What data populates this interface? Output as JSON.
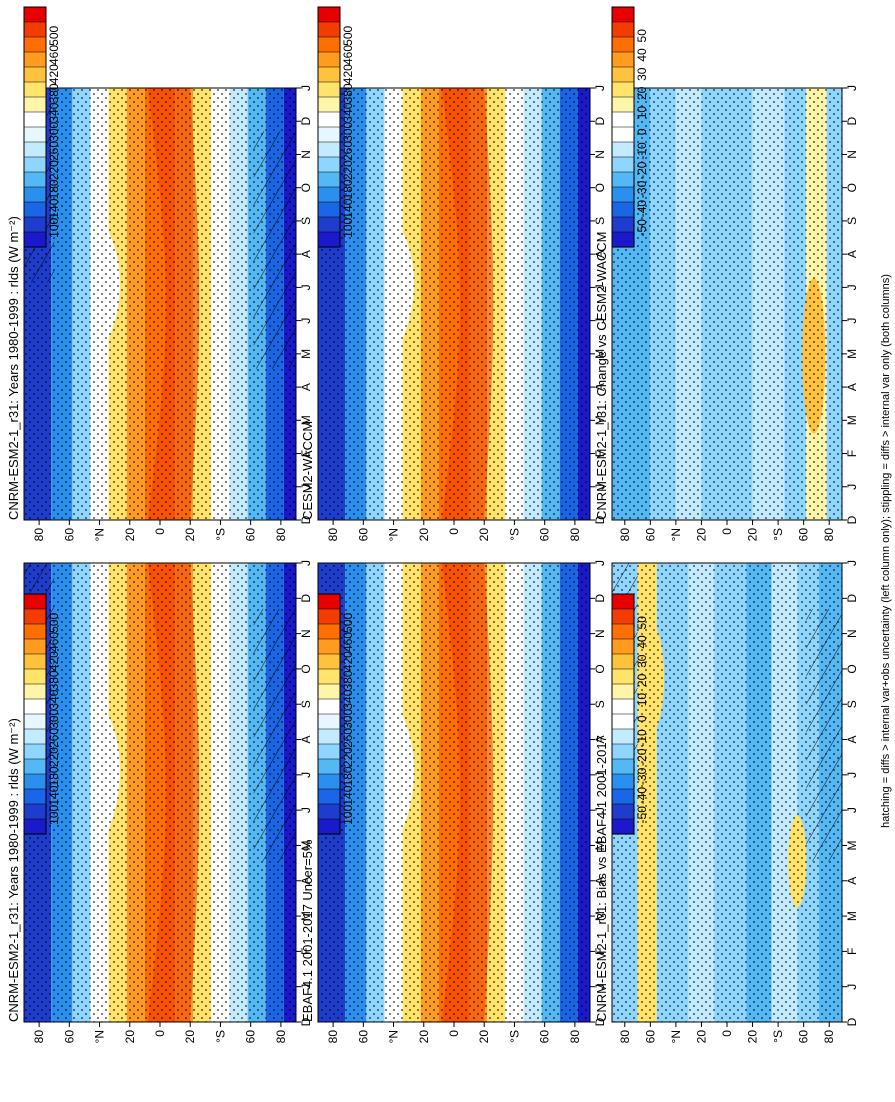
{
  "figure": {
    "footnote": "hatching = diffs > internal var+obs uncertainty (left column only); stippling = diffs > internal var only (both columns)"
  },
  "chart_data": [
    {
      "id": "p1",
      "type": "heatmap",
      "stipple": true,
      "title": "CNRM-ESM2-1_r31: Years 1980-1999 : rlds (W m⁻²)",
      "x": [
        "D",
        "J",
        "F",
        "M",
        "A",
        "M",
        "J",
        "J",
        "A",
        "S",
        "O",
        "N",
        "D",
        "J"
      ],
      "y": [
        "80",
        "60",
        "°N",
        "20",
        "0",
        "20",
        "°S",
        "60",
        "80"
      ],
      "ylim": [
        -90,
        90
      ],
      "colorbar": {
        "ticks": [
          "500",
          "460",
          "420",
          "380",
          "340",
          "300",
          "260",
          "220",
          "180",
          "140",
          "100"
        ],
        "colors": [
          "#e60000",
          "#f23c00",
          "#ff6e00",
          "#ff9b1f",
          "#ffc23d",
          "#ffe36b",
          "#fff5a8",
          "#ffffff",
          "#e6f7ff",
          "#c2ebff",
          "#8fd6ff",
          "#54b8f5",
          "#2b8ff0",
          "#1a66e6",
          "#1f3dcc",
          "#1a1acc"
        ]
      }
    },
    {
      "id": "p2",
      "type": "heatmap",
      "stipple": true,
      "title": "CNRM-ESM2-1_r31: Years 1980-1999 : rlds (W m⁻²)",
      "x": [
        "D",
        "J",
        "F",
        "M",
        "A",
        "M",
        "J",
        "J",
        "A",
        "S",
        "O",
        "N",
        "D",
        "J"
      ],
      "y": [
        "80",
        "60",
        "°N",
        "20",
        "0",
        "20",
        "°S",
        "60",
        "80"
      ],
      "ylim": [
        -90,
        90
      ],
      "colorbar": {
        "ticks": [
          "500",
          "460",
          "420",
          "380",
          "340",
          "300",
          "260",
          "220",
          "180",
          "140",
          "100"
        ],
        "colors": [
          "#e60000",
          "#f23c00",
          "#ff6e00",
          "#ff9b1f",
          "#ffc23d",
          "#ffe36b",
          "#fff5a8",
          "#ffffff",
          "#e6f7ff",
          "#c2ebff",
          "#8fd6ff",
          "#54b8f5",
          "#2b8ff0",
          "#1a66e6",
          "#1f3dcc",
          "#1a1acc"
        ]
      }
    },
    {
      "id": "p3",
      "type": "heatmap",
      "stipple": true,
      "title": "CESM2-WACCM",
      "x": [
        "D",
        "J",
        "F",
        "M",
        "A",
        "M",
        "J",
        "J",
        "A",
        "S",
        "O",
        "N",
        "D",
        "J"
      ],
      "y": [
        "80",
        "60",
        "°N",
        "20",
        "0",
        "20",
        "°S",
        "60",
        "80"
      ],
      "ylim": [
        -90,
        90
      ],
      "colorbar": {
        "ticks": [
          "500",
          "460",
          "420",
          "380",
          "340",
          "300",
          "260",
          "220",
          "180",
          "140",
          "100"
        ],
        "colors": [
          "#e60000",
          "#f23c00",
          "#ff6e00",
          "#ff9b1f",
          "#ffc23d",
          "#ffe36b",
          "#fff5a8",
          "#ffffff",
          "#e6f7ff",
          "#c2ebff",
          "#8fd6ff",
          "#54b8f5",
          "#2b8ff0",
          "#1a66e6",
          "#1f3dcc",
          "#1a1acc"
        ]
      }
    },
    {
      "id": "p4",
      "type": "heatmap",
      "stipple": true,
      "title": "EBAF4.1 2001-2017 Uncer=5%",
      "x": [
        "D",
        "J",
        "F",
        "M",
        "A",
        "M",
        "J",
        "J",
        "A",
        "S",
        "O",
        "N",
        "D",
        "J"
      ],
      "y": [
        "80",
        "60",
        "°N",
        "20",
        "0",
        "20",
        "°S",
        "60",
        "80"
      ],
      "ylim": [
        -90,
        90
      ],
      "colorbar": {
        "ticks": [
          "500",
          "460",
          "420",
          "380",
          "340",
          "300",
          "260",
          "220",
          "180",
          "140",
          "100"
        ],
        "colors": [
          "#e60000",
          "#f23c00",
          "#ff6e00",
          "#ff9b1f",
          "#ffc23d",
          "#ffe36b",
          "#fff5a8",
          "#ffffff",
          "#e6f7ff",
          "#c2ebff",
          "#8fd6ff",
          "#54b8f5",
          "#2b8ff0",
          "#1a66e6",
          "#1f3dcc",
          "#1a1acc"
        ]
      }
    },
    {
      "id": "p5",
      "type": "heatmap",
      "stipple": true,
      "title": "CNRM-ESM2-1_r31: Change vs CESM2-WACCM",
      "x": [
        "D",
        "J",
        "F",
        "M",
        "A",
        "M",
        "J",
        "J",
        "A",
        "S",
        "O",
        "N",
        "D",
        "J"
      ],
      "y": [
        "80",
        "60",
        "°N",
        "20",
        "0",
        "20",
        "°S",
        "60",
        "80"
      ],
      "ylim": [
        -90,
        90
      ],
      "colorbar": {
        "ticks": [
          "50",
          "40",
          "30",
          "20",
          "10",
          "0",
          "-10",
          "-20",
          "-30",
          "-40",
          "-50"
        ],
        "colors": [
          "#e60000",
          "#f23c00",
          "#ff6e00",
          "#ff9b1f",
          "#ffc23d",
          "#ffe36b",
          "#fff5a8",
          "#ffffff",
          "#ffffff",
          "#c2ebff",
          "#8fd6ff",
          "#54b8f5",
          "#2b8ff0",
          "#1a66e6",
          "#1f3dcc",
          "#1a1acc"
        ]
      }
    },
    {
      "id": "p6",
      "type": "heatmap",
      "stipple": true,
      "title": "CNRM-ESM2-1_r31: Bias vs EBAF4.1 2001-2017",
      "x": [
        "D",
        "J",
        "F",
        "M",
        "A",
        "M",
        "J",
        "J",
        "A",
        "S",
        "O",
        "N",
        "D",
        "J"
      ],
      "y": [
        "80",
        "60",
        "°N",
        "20",
        "0",
        "20",
        "°S",
        "60",
        "80"
      ],
      "ylim": [
        -90,
        90
      ],
      "colorbar": {
        "ticks": [
          "50",
          "40",
          "30",
          "20",
          "10",
          "0",
          "-10",
          "-20",
          "-30",
          "-40",
          "-50"
        ],
        "colors": [
          "#e60000",
          "#f23c00",
          "#ff6e00",
          "#ff9b1f",
          "#ffc23d",
          "#ffe36b",
          "#fff5a8",
          "#ffffff",
          "#ffffff",
          "#c2ebff",
          "#8fd6ff",
          "#54b8f5",
          "#2b8ff0",
          "#1a66e6",
          "#1f3dcc",
          "#1a1acc"
        ]
      }
    }
  ]
}
